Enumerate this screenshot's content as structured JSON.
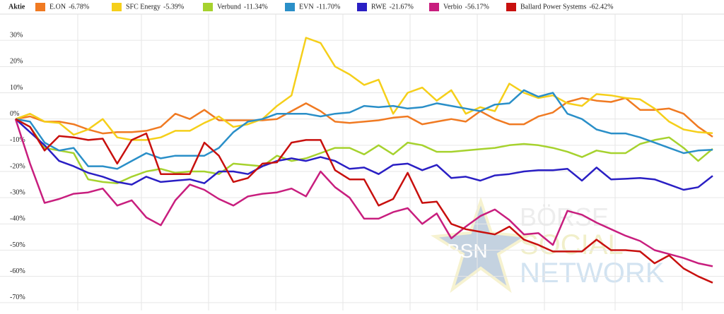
{
  "chart_data": {
    "type": "line",
    "legend_title": "Aktie",
    "categories": [
      null,
      null,
      null,
      null,
      null,
      null,
      null,
      null,
      null,
      null,
      null,
      null,
      null,
      null,
      null,
      null,
      null,
      null,
      null,
      null,
      null,
      null,
      null,
      null,
      null,
      null,
      null,
      null,
      null,
      null,
      null,
      null,
      null,
      null,
      null,
      null,
      null,
      null,
      null,
      null,
      null,
      null,
      null,
      null,
      null,
      null,
      null,
      null,
      null
    ],
    "ylim": [
      -73,
      40
    ],
    "yticks": [
      {
        "value": 30,
        "label": "30%"
      },
      {
        "value": 20,
        "label": "20%"
      },
      {
        "value": 10,
        "label": "10%"
      },
      {
        "value": 0,
        "label": "0%"
      },
      {
        "value": -10,
        "label": "-10%"
      },
      {
        "value": -20,
        "label": "-20%"
      },
      {
        "value": -30,
        "label": "-30%"
      },
      {
        "value": -40,
        "label": "-40%"
      },
      {
        "value": -50,
        "label": "-50%"
      },
      {
        "value": -60,
        "label": "-60%"
      },
      {
        "value": -70,
        "label": "-70%"
      }
    ],
    "grid": true,
    "watermark": {
      "logo": "BSN",
      "lines": [
        "BÖRSE",
        "SOCIAL",
        "NETWORK"
      ]
    },
    "series": [
      {
        "name": "E.ON",
        "change": "-6.78%",
        "color": "#f07a22",
        "values": [
          0,
          1,
          -1,
          -1,
          -2,
          -4,
          -5.5,
          -5,
          -5,
          -4.5,
          -3,
          2,
          0,
          3.5,
          -0.5,
          -0.5,
          -0.5,
          -0.5,
          0,
          3,
          6,
          3,
          -1,
          -1.5,
          -1,
          -0.5,
          0.5,
          1,
          -2,
          -1,
          0,
          -1,
          3,
          0,
          -2,
          -2,
          1,
          2.5,
          6.5,
          8,
          7,
          6.5,
          8,
          3.5,
          3.5,
          4,
          2,
          -3,
          -6.78
        ]
      },
      {
        "name": "SFC Energy",
        "change": "-5.39%",
        "color": "#f5cf1a",
        "values": [
          0,
          2,
          -1,
          -1.5,
          -6,
          -4,
          0,
          -7,
          -8,
          -8,
          -7,
          -4.5,
          -4.5,
          -1.5,
          1,
          -3,
          -2,
          0,
          5,
          9,
          31,
          29,
          20,
          17,
          13,
          15,
          2,
          10,
          12,
          7,
          11,
          2,
          4.5,
          3,
          13.5,
          10,
          8,
          9,
          6,
          5,
          9.5,
          9,
          8,
          7.5,
          4,
          -1,
          -4,
          -5,
          -5.39
        ]
      },
      {
        "name": "Verbund",
        "change": "-11.34%",
        "color": "#a6d22e",
        "values": [
          0,
          -3,
          -11,
          -12,
          -13,
          -23,
          -24,
          -24.5,
          -22,
          -20,
          -19,
          -20.5,
          -20,
          -20,
          -21,
          -17,
          -17.5,
          -18,
          -14,
          -16,
          -15,
          -13,
          -11,
          -11,
          -13.5,
          -10,
          -13.5,
          -9,
          -10,
          -12.5,
          -12.5,
          -12,
          -11.5,
          -11,
          -10,
          -9.5,
          -10,
          -11,
          -12.5,
          -14.5,
          -12,
          -13,
          -13,
          -9.5,
          -8,
          -7,
          -11,
          -16,
          -11.34
        ]
      },
      {
        "name": "EVN",
        "change": "-11.70%",
        "color": "#2a8fc8",
        "values": [
          0,
          -1,
          -9,
          -12,
          -11,
          -18,
          -18,
          -19,
          -16,
          -13,
          -15,
          -14,
          -14,
          -14,
          -11,
          -5,
          -1,
          0,
          2,
          2,
          2,
          1,
          2,
          2.5,
          5,
          4.5,
          5,
          4,
          4.5,
          6,
          5,
          4,
          3,
          5.5,
          6,
          11,
          8.5,
          10,
          2,
          0,
          -4,
          -5.5,
          -5.5,
          -7,
          -9,
          -11,
          -13,
          -12,
          -11.7
        ]
      },
      {
        "name": "RWE",
        "change": "-21.67%",
        "color": "#2a1fc4",
        "values": [
          0,
          -5,
          -10,
          -16,
          -18,
          -20.5,
          -22,
          -24,
          -25,
          -22,
          -24,
          -23.5,
          -23,
          -24.5,
          -20,
          -20,
          -21,
          -18,
          -16,
          -15,
          -16,
          -14.5,
          -16,
          -19,
          -18.5,
          -21,
          -17.5,
          -17,
          -19.5,
          -17.5,
          -22.5,
          -22,
          -23.5,
          -21.5,
          -21,
          -20,
          -19.5,
          -19.5,
          -19,
          -23.5,
          -18.5,
          -23,
          -22.8,
          -22.5,
          -23,
          -25,
          -27,
          -26,
          -21.67
        ]
      },
      {
        "name": "Verbio",
        "change": "-56.17%",
        "color": "#c81e7e",
        "values": [
          0,
          -17,
          -32,
          -30.5,
          -28.5,
          -28,
          -26.5,
          -33,
          -31,
          -37.5,
          -40.5,
          -31,
          -25,
          -27,
          -30.5,
          -33,
          -29.5,
          -28.5,
          -28,
          -26.5,
          -29.5,
          -20,
          -26,
          -30,
          -38,
          -38,
          -35.5,
          -34,
          -40,
          -36,
          -45.5,
          -41,
          -37,
          -34.5,
          -38.5,
          -44,
          -43.5,
          -48,
          -35,
          -36.5,
          -39.5,
          -42,
          -44.5,
          -46.5,
          -50,
          -51.5,
          -53,
          -55,
          -56.17
        ]
      },
      {
        "name": "Ballard Power Systems",
        "change": "-62.42%",
        "color": "#c8100e",
        "values": [
          0,
          -3,
          -12,
          -6.5,
          -7,
          -8,
          -7.5,
          -17,
          -8,
          -5.5,
          -21,
          -21,
          -21,
          -9,
          -14,
          -24,
          -22.5,
          -17,
          -16.5,
          -9,
          -8,
          -8,
          -19.5,
          -23,
          -23,
          -33,
          -30.5,
          -20.5,
          -32,
          -31.5,
          -40,
          -42,
          -43,
          -44,
          -41,
          -46,
          -48,
          -50.5,
          -50.5,
          -50.5,
          -46,
          -50,
          -50,
          -50.5,
          -55,
          -52,
          -57,
          -60,
          -62.42
        ]
      }
    ]
  }
}
